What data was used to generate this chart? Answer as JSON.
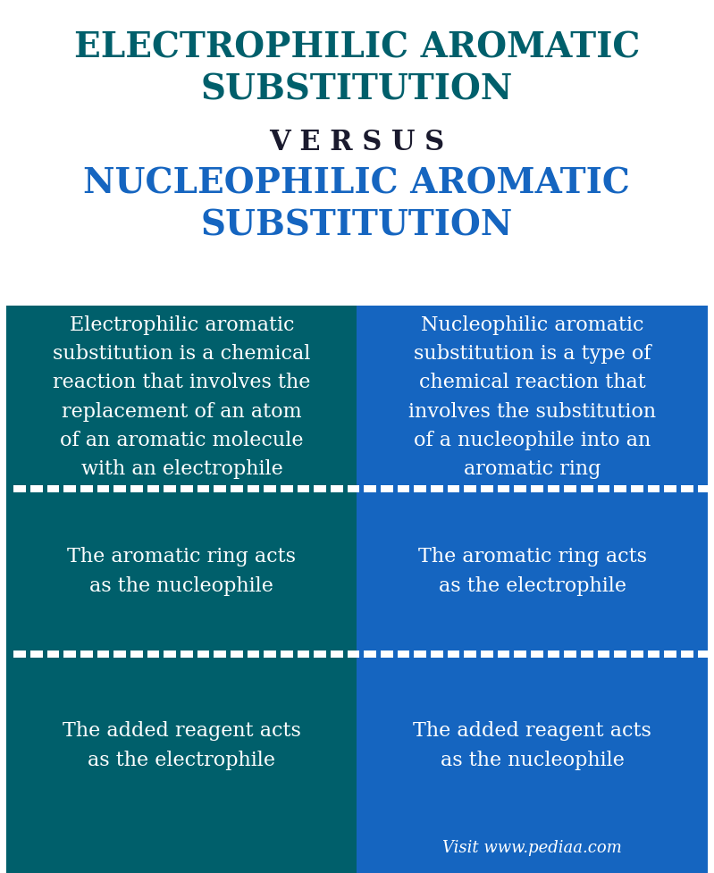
{
  "title1": "ELECTROPHILIC AROMATIC\nSUBSTITUTION",
  "versus": "V E R S U S",
  "title2": "NUCLEOPHILIC AROMATIC\nSUBSTITUTION",
  "title1_color": "#005f6b",
  "title2_color": "#1565C0",
  "versus_color": "#1a1a2e",
  "left_bg": "#005f6b",
  "right_bg": "#1565C0",
  "white": "#ffffff",
  "header_bg": "#ffffff",
  "left_col_texts": [
    "Electrophilic aromatic\nsubstitution is a chemical\nreaction that involves the\nreplacement of an atom\nof an aromatic molecule\nwith an electrophile",
    "The aromatic ring acts\nas the nucleophile",
    "The added reagent acts\nas the electrophile"
  ],
  "right_col_texts": [
    "Nucleophilic aromatic\nsubstitution is a type of\nchemical reaction that\ninvolves the substitution\nof a nucleophile into an\naromatic ring",
    "The aromatic ring acts\nas the electrophile",
    "The added reagent acts\nas the nucleophile"
  ],
  "footer_text": "Visit www.pediaa.com",
  "fig_width": 7.99,
  "fig_height": 9.77
}
